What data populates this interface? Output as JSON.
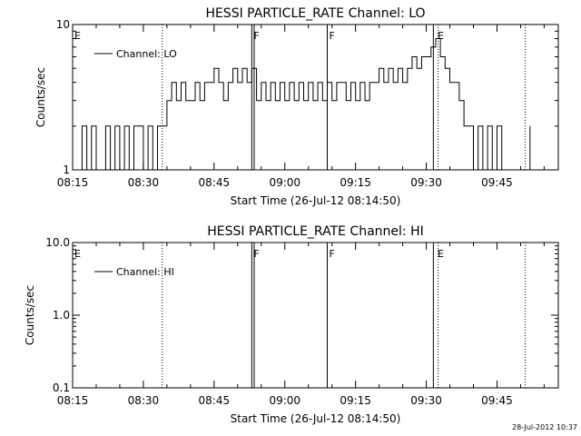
{
  "chart_data": [
    {
      "type": "line",
      "title": "HESSI PARTICLE_RATE Channel: LO",
      "xlabel": "Start Time (26-Jul-12 08:14:50)",
      "ylabel": "Counts/sec",
      "yscale": "log",
      "ylim": [
        1,
        10
      ],
      "xlim": [
        "08:15",
        "09:58"
      ],
      "xticks": [
        "08:15",
        "08:30",
        "08:45",
        "09:00",
        "09:15",
        "09:30",
        "09:45"
      ],
      "yticks": [
        "1",
        "10"
      ],
      "legend": {
        "label": "Channel: LO",
        "placement": "top-left"
      },
      "flags": [
        {
          "label": "E",
          "time": "08:15"
        },
        {
          "label": "F",
          "time": "08:53"
        },
        {
          "label": "F",
          "time": "09:09"
        },
        {
          "label": "E",
          "time": "09:32"
        }
      ],
      "solid_vlines": [
        "08:53",
        "08:53.5",
        "09:09",
        "09:31.5"
      ],
      "dotted_vlines": [
        "08:34",
        "09:32.5",
        "09:51"
      ],
      "series": [
        {
          "name": "Channel: LO",
          "x": [
            "08:16",
            "08:17",
            "08:18",
            "08:19",
            "08:20",
            "08:21",
            "08:22",
            "08:23",
            "08:24",
            "08:25",
            "08:26",
            "08:27",
            "08:28",
            "08:29",
            "08:30",
            "08:31",
            "08:32",
            "08:33",
            "08:34",
            "08:35",
            "08:36",
            "08:37",
            "08:38",
            "08:39",
            "08:40",
            "08:41",
            "08:42",
            "08:43",
            "08:44",
            "08:45",
            "08:46",
            "08:47",
            "08:48",
            "08:49",
            "08:50",
            "08:51",
            "08:52",
            "08:53",
            "08:54",
            "08:55",
            "08:56",
            "08:57",
            "08:58",
            "08:59",
            "09:00",
            "09:01",
            "09:02",
            "09:03",
            "09:04",
            "09:05",
            "09:06",
            "09:07",
            "09:08",
            "09:09",
            "09:10",
            "09:11",
            "09:12",
            "09:13",
            "09:14",
            "09:15",
            "09:16",
            "09:17",
            "09:18",
            "09:19",
            "09:20",
            "09:21",
            "09:22",
            "09:23",
            "09:24",
            "09:25",
            "09:26",
            "09:27",
            "09:28",
            "09:29",
            "09:30",
            "09:31",
            "09:32",
            "09:33",
            "09:34",
            "09:35",
            "09:36",
            "09:37",
            "09:38",
            "09:39",
            "09:40",
            "09:41",
            "09:42",
            "09:43",
            "09:44",
            "09:45",
            "09:46",
            "09:47",
            "09:48",
            "09:49",
            "09:50",
            "09:51",
            "09:52"
          ],
          "values": [
            1,
            2,
            1,
            2,
            1,
            1,
            2,
            1,
            2,
            1,
            2,
            1,
            2,
            2,
            1,
            2,
            1,
            2,
            2,
            3,
            4,
            3,
            4,
            3,
            3,
            4,
            3,
            4,
            4,
            5,
            4,
            3,
            4,
            5,
            4,
            5,
            4,
            5,
            3,
            4,
            3,
            4,
            3,
            4,
            3,
            4,
            3,
            4,
            3,
            4,
            3,
            4,
            3,
            4,
            3,
            4,
            4,
            3,
            4,
            3,
            4,
            3,
            4,
            4,
            5,
            4,
            5,
            4,
            5,
            4,
            5,
            6,
            5,
            6,
            6,
            7,
            8,
            6,
            5,
            4,
            4,
            3,
            2,
            2,
            1,
            2,
            1,
            2,
            1,
            2,
            1,
            1,
            1,
            1,
            1,
            1,
            2
          ]
        }
      ]
    },
    {
      "type": "line",
      "title": "HESSI PARTICLE_RATE Channel: HI",
      "xlabel": "Start Time (26-Jul-12 08:14:50)",
      "ylabel": "Counts/sec",
      "yscale": "log",
      "ylim": [
        0.1,
        10
      ],
      "xlim": [
        "08:15",
        "09:58"
      ],
      "xticks": [
        "08:15",
        "08:30",
        "08:45",
        "09:00",
        "09:15",
        "09:30",
        "09:45"
      ],
      "yticks": [
        "0.1",
        "1.0",
        "10.0"
      ],
      "legend": {
        "label": "Channel: HI",
        "placement": "top-left"
      },
      "flags": [
        {
          "label": "E",
          "time": "08:15"
        },
        {
          "label": "F",
          "time": "08:53"
        },
        {
          "label": "F",
          "time": "09:09"
        },
        {
          "label": "E",
          "time": "09:32"
        }
      ],
      "solid_vlines": [
        "08:53",
        "08:53.5",
        "09:09",
        "09:31.5"
      ],
      "dotted_vlines": [
        "08:34",
        "09:32.5",
        "09:51"
      ],
      "series": [
        {
          "name": "Channel: HI",
          "x": [],
          "values": []
        }
      ]
    }
  ],
  "footer": {
    "timestamp": "28-Jul-2012 10:37"
  }
}
